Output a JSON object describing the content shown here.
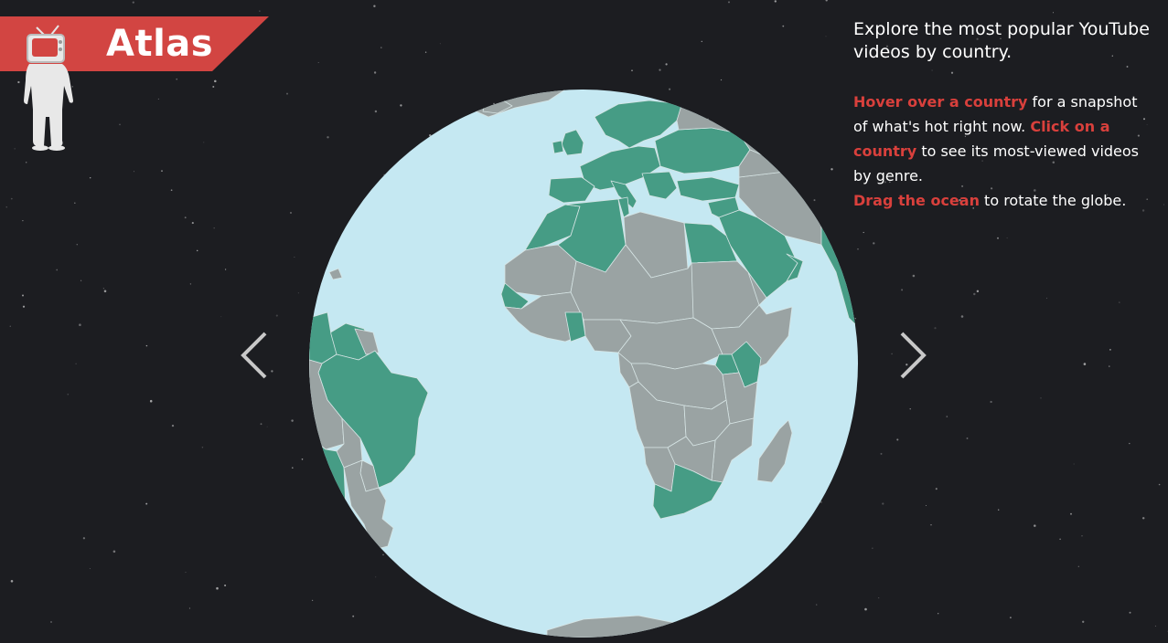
{
  "app": {
    "title": "Atlas"
  },
  "intro": {
    "text": "Explore the most popular YouTube videos by country."
  },
  "help": {
    "hover_link": "Hover over a country",
    "hover_rest": " for a snapshot of what's hot right now. ",
    "click_link": "Click on a country",
    "click_rest": " to see its most-viewed videos by genre.",
    "drag_link": "Drag the ocean",
    "drag_rest": " to rotate the globe."
  },
  "navigation": {
    "prev_icon": "chevron-left-icon",
    "next_icon": "chevron-right-icon"
  },
  "colors": {
    "background": "#1c1d21",
    "banner": "#d24542",
    "accent_text": "#d9403c",
    "ocean": "#c5e8f2",
    "highlighted_country": "#469c85",
    "other_country": "#9aa3a3",
    "arrow": "#c8c8c8"
  },
  "icons": {
    "mascot": "tv-head-astronaut-icon"
  }
}
